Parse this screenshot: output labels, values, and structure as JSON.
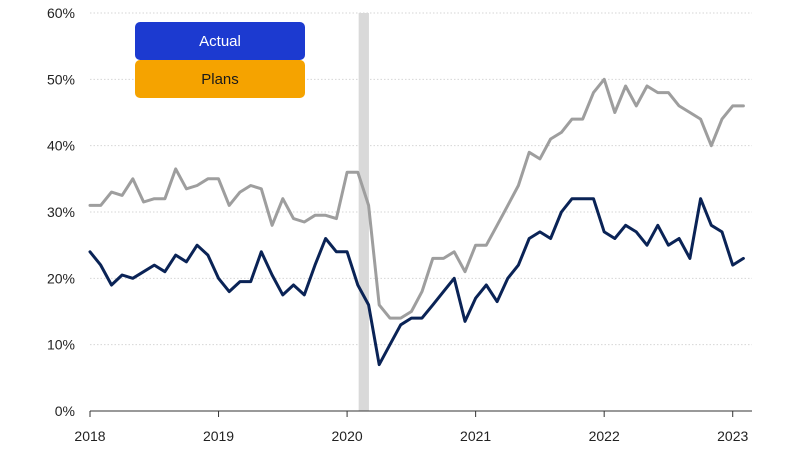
{
  "chart_data": {
    "type": "line",
    "title": "",
    "xlabel": "",
    "ylabel": "",
    "ylim": [
      0,
      60
    ],
    "xlim": [
      2018,
      2023.15
    ],
    "y_ticks": [
      "0%",
      "10%",
      "20%",
      "30%",
      "40%",
      "50%",
      "60%"
    ],
    "y_tick_values": [
      0,
      10,
      20,
      30,
      40,
      50,
      60
    ],
    "x_ticks": [
      "2018",
      "2019",
      "2020",
      "2021",
      "2022",
      "2023"
    ],
    "x_tick_values": [
      2018,
      2019,
      2020,
      2021,
      2022,
      2023
    ],
    "grid": "horizontal",
    "shaded_period": {
      "start": 2020.09,
      "end": 2020.17,
      "color": "#d9d9d9"
    },
    "legend": {
      "placement": "top-left",
      "entries": [
        {
          "label": "Actual",
          "color": "#1c3ad0",
          "text_color": "#ffffff"
        },
        {
          "label": "Plans",
          "color": "#f5a300",
          "text_color": "#1a1a1a"
        }
      ]
    },
    "series": [
      {
        "key": "actual",
        "color": "#0a2356",
        "x": [
          2018.0,
          2018.083,
          2018.167,
          2018.25,
          2018.333,
          2018.417,
          2018.5,
          2018.583,
          2018.667,
          2018.75,
          2018.833,
          2018.917,
          2019.0,
          2019.083,
          2019.167,
          2019.25,
          2019.333,
          2019.417,
          2019.5,
          2019.583,
          2019.667,
          2019.75,
          2019.833,
          2019.917,
          2020.0,
          2020.083,
          2020.167,
          2020.25,
          2020.333,
          2020.417,
          2020.5,
          2020.583,
          2020.667,
          2020.75,
          2020.833,
          2020.917,
          2021.0,
          2021.083,
          2021.167,
          2021.25,
          2021.333,
          2021.417,
          2021.5,
          2021.583,
          2021.667,
          2021.75,
          2021.833,
          2021.917,
          2022.0,
          2022.083,
          2022.167,
          2022.25,
          2022.333,
          2022.417,
          2022.5,
          2022.583,
          2022.667,
          2022.75,
          2022.833,
          2022.917,
          2023.0,
          2023.083
        ],
        "y": [
          24,
          22,
          19,
          20.5,
          20,
          21,
          22,
          21,
          23.5,
          22.5,
          25,
          23.5,
          20,
          18,
          19.5,
          19.5,
          24,
          20.5,
          17.5,
          19,
          17.5,
          22,
          26,
          24,
          24,
          19,
          16,
          7,
          10,
          13,
          14,
          14,
          16,
          18,
          20,
          13.5,
          17,
          19,
          16.5,
          20,
          22,
          26,
          27,
          26,
          30,
          32,
          32,
          32,
          27,
          26,
          28,
          27,
          25,
          28,
          25,
          26,
          23,
          32,
          28,
          27,
          22,
          23
        ]
      },
      {
        "key": "plans",
        "color": "#9e9e9e",
        "x": [
          2018.0,
          2018.083,
          2018.167,
          2018.25,
          2018.333,
          2018.417,
          2018.5,
          2018.583,
          2018.667,
          2018.75,
          2018.833,
          2018.917,
          2019.0,
          2019.083,
          2019.167,
          2019.25,
          2019.333,
          2019.417,
          2019.5,
          2019.583,
          2019.667,
          2019.75,
          2019.833,
          2019.917,
          2020.0,
          2020.083,
          2020.167,
          2020.25,
          2020.333,
          2020.417,
          2020.5,
          2020.583,
          2020.667,
          2020.75,
          2020.833,
          2020.917,
          2021.0,
          2021.083,
          2021.167,
          2021.25,
          2021.333,
          2021.417,
          2021.5,
          2021.583,
          2021.667,
          2021.75,
          2021.833,
          2021.917,
          2022.0,
          2022.083,
          2022.167,
          2022.25,
          2022.333,
          2022.417,
          2022.5,
          2022.583,
          2022.667,
          2022.75,
          2022.833,
          2022.917,
          2023.0,
          2023.083
        ],
        "y": [
          31,
          31,
          33,
          32.5,
          35,
          31.5,
          32,
          32,
          36.5,
          33.5,
          34,
          35,
          35,
          31,
          33,
          34,
          33.5,
          28,
          32,
          29,
          28.5,
          29.5,
          29.5,
          29,
          36,
          36,
          31,
          16,
          14,
          14,
          15,
          18,
          23,
          23,
          24,
          21,
          25,
          25,
          28,
          31,
          34,
          39,
          38,
          41,
          42,
          44,
          44,
          48,
          50,
          45,
          49,
          46,
          49,
          48,
          48,
          46,
          45,
          44,
          40,
          44,
          46,
          46
        ]
      }
    ]
  }
}
